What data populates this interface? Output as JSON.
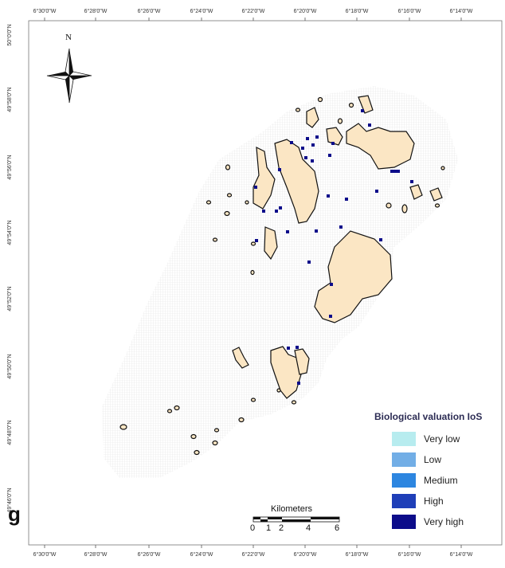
{
  "panel_letter": "g",
  "north_label": "N",
  "top_ticks": [
    "6°30'0\"W",
    "6°28'0\"W",
    "6°26'0\"W",
    "6°24'0\"W",
    "6°22'0\"W",
    "6°20'0\"W",
    "6°18'0\"W",
    "6°16'0\"W",
    "6°14'0\"W"
  ],
  "bottom_ticks": [
    "6°30'0\"W",
    "6°28'0\"W",
    "6°26'0\"W",
    "6°24'0\"W",
    "6°22'0\"W",
    "6°20'0\"W",
    "6°18'0\"W",
    "6°16'0\"W",
    "6°14'0\"W"
  ],
  "left_ticks": [
    "50°0'0\"N",
    "49°58'0\"N",
    "49°56'0\"N",
    "49°54'0\"N",
    "49°52'0\"N",
    "49°50'0\"N",
    "49°48'0\"N",
    "49°46'0\"N"
  ],
  "scale_bar": {
    "title": "Kilometers",
    "labels": [
      "0",
      "1",
      "2",
      "4",
      "6"
    ]
  },
  "legend": {
    "title": "Biological valuation IoS",
    "items": [
      {
        "label": "Very low",
        "color": "#b7ecef"
      },
      {
        "label": "Low",
        "color": "#72aee6"
      },
      {
        "label": "Medium",
        "color": "#2d86e0"
      },
      {
        "label": "High",
        "color": "#1f3fb8"
      },
      {
        "label": "Very high",
        "color": "#0c0c8a"
      }
    ]
  },
  "colors": {
    "land": "#fbe6c4",
    "land_outline": "#111111",
    "grid": "#e6e6e6",
    "hotspot": "#0c0c8a"
  }
}
